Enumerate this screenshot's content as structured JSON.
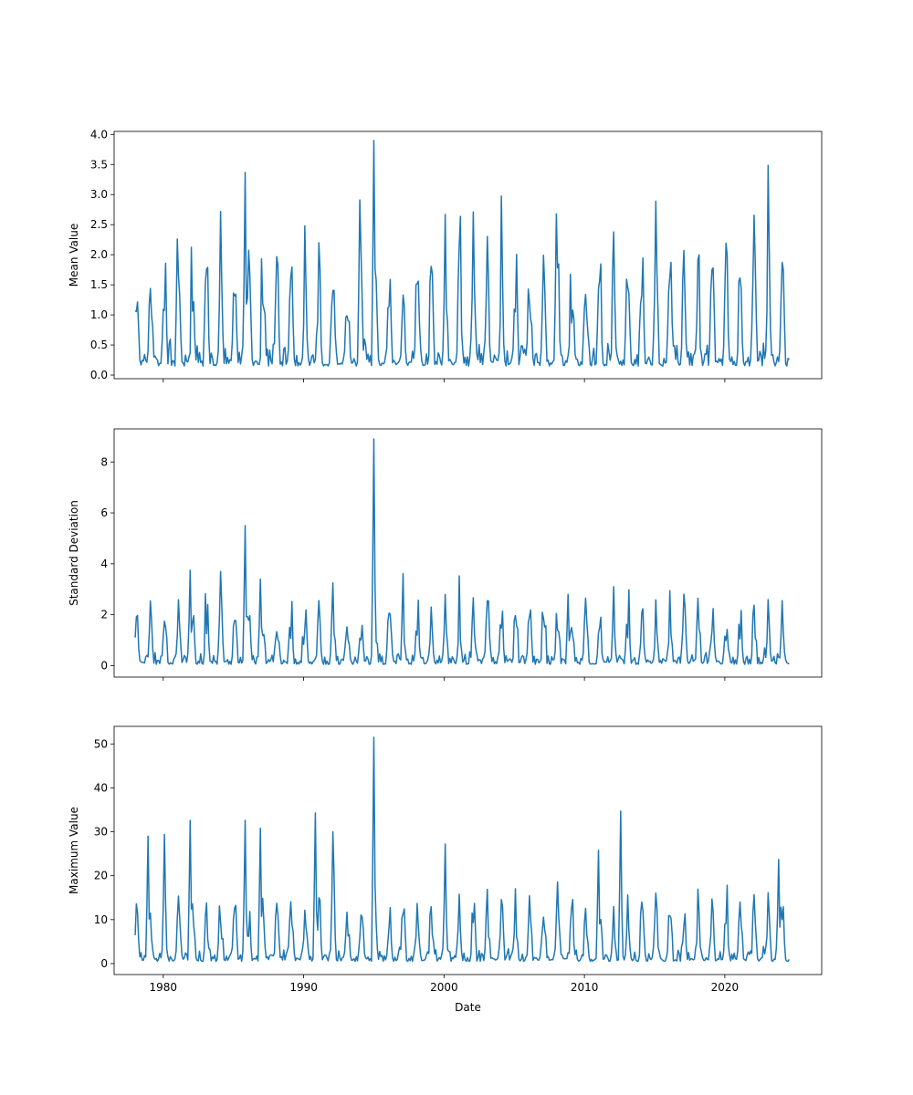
{
  "chart_data": [
    {
      "type": "line",
      "title": "",
      "xlabel": "",
      "ylabel": "Mean Value",
      "xlim": [
        1976.5,
        2026.9
      ],
      "ylim": [
        -0.06,
        4.05
      ],
      "xticks": [
        1980,
        1990,
        2000,
        2010,
        2020
      ],
      "xtick_labels": [],
      "yticks": [
        0.0,
        0.5,
        1.0,
        1.5,
        2.0,
        2.5,
        3.0,
        3.5,
        4.0
      ],
      "ytick_labels": [
        "0.0",
        "0.5",
        "1.0",
        "1.5",
        "2.0",
        "2.5",
        "3.0",
        "3.5",
        "4.0"
      ],
      "grid": false,
      "color": "#1f77b4",
      "x_start": 1978.0,
      "x_step": 0.0833333,
      "base": 0.15,
      "amp": 1.6,
      "spikes": [
        [
          17.0,
          3.9
        ],
        [
          7.8,
          3.37
        ],
        [
          6.1,
          2.72
        ],
        [
          16.0,
          2.91
        ],
        [
          22.1,
          2.67
        ],
        [
          24.1,
          2.71
        ],
        [
          30.0,
          2.68
        ],
        [
          42.1,
          2.19
        ],
        [
          34.1,
          2.38
        ],
        [
          3.0,
          2.26
        ]
      ],
      "y": []
    },
    {
      "type": "line",
      "title": "",
      "xlabel": "",
      "ylabel": "Standard Deviation",
      "xlim": [
        1976.5,
        2026.9
      ],
      "ylim": [
        -0.45,
        9.3
      ],
      "xticks": [
        1980,
        1990,
        2000,
        2010,
        2020
      ],
      "xtick_labels": [],
      "yticks": [
        0,
        2,
        4,
        6,
        8
      ],
      "ytick_labels": [
        "0",
        "2",
        "4",
        "6",
        "8"
      ],
      "grid": false,
      "color": "#1f77b4",
      "x_start": 1978.0,
      "x_step": 0.0833333,
      "base": 0.05,
      "amp": 2.0,
      "spikes": [
        [
          17.0,
          8.9
        ],
        [
          7.8,
          5.5
        ],
        [
          3.9,
          3.75
        ],
        [
          6.1,
          3.7
        ],
        [
          8.9,
          3.4
        ],
        [
          34.1,
          3.1
        ],
        [
          14.1,
          3.25
        ],
        [
          22.1,
          2.8
        ],
        [
          46.1,
          2.55
        ],
        [
          30.8,
          2.8
        ]
      ],
      "y": []
    },
    {
      "type": "line",
      "title": "",
      "xlabel": "Date",
      "ylabel": "Maximum Value",
      "xlim": [
        1976.5,
        2026.9
      ],
      "ylim": [
        -2.5,
        54
      ],
      "xticks": [
        1980,
        1990,
        2000,
        2010,
        2020
      ],
      "xtick_labels": [
        "1980",
        "1990",
        "2000",
        "2010",
        "2020"
      ],
      "yticks": [
        0,
        10,
        20,
        30,
        40,
        50
      ],
      "ytick_labels": [
        "0",
        "10",
        "20",
        "30",
        "40",
        "50"
      ],
      "grid": false,
      "color": "#1f77b4",
      "x_start": 1978.0,
      "x_step": 0.0833333,
      "base": 0.5,
      "amp": 12.0,
      "spikes": [
        [
          17.0,
          51.5
        ],
        [
          34.6,
          34.7
        ],
        [
          12.8,
          34.3
        ],
        [
          3.9,
          32.6
        ],
        [
          7.8,
          32.6
        ],
        [
          14.1,
          30.0
        ],
        [
          8.9,
          30.8
        ],
        [
          0.9,
          29.0
        ],
        [
          2.1,
          29.4
        ],
        [
          22.1,
          27.2
        ],
        [
          33.0,
          25.8
        ],
        [
          45.8,
          23.7
        ]
      ],
      "y": []
    }
  ]
}
